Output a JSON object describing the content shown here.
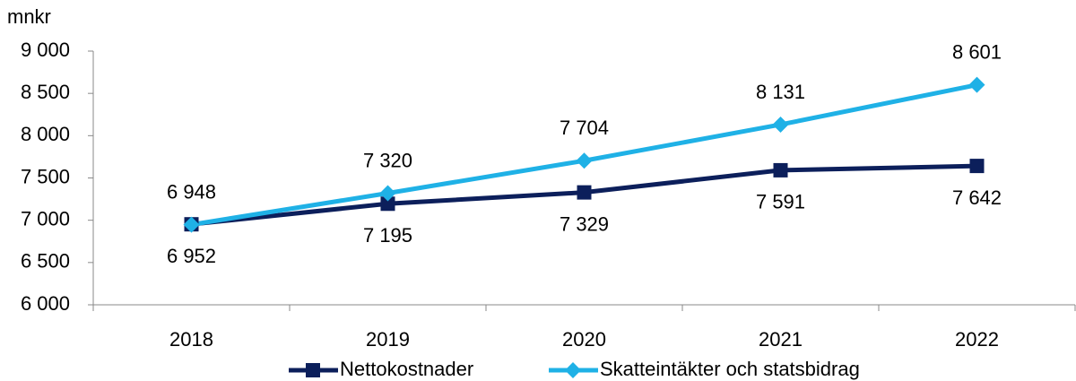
{
  "chart_data": {
    "type": "line",
    "y_label": "mnkr",
    "categories": [
      "2018",
      "2019",
      "2020",
      "2021",
      "2022"
    ],
    "series": [
      {
        "name": "Nettokostnader",
        "color": "#0c1f5b",
        "marker": "square",
        "values": [
          6952,
          7195,
          7329,
          7591,
          7642
        ],
        "value_labels": [
          "6 952",
          "7 195",
          "7 329",
          "7 591",
          "7 642"
        ]
      },
      {
        "name": "Skatteintäkter och statsbidrag",
        "color": "#1fb1e6",
        "marker": "diamond",
        "values": [
          6948,
          7320,
          7704,
          8131,
          8601
        ],
        "value_labels": [
          "6 948",
          "7 320",
          "7 704",
          "8 131",
          "8 601"
        ]
      }
    ],
    "ylim": [
      6000,
      9000
    ],
    "yticks": [
      {
        "value": 6000,
        "label": "6 000"
      },
      {
        "value": 6500,
        "label": "6 500"
      },
      {
        "value": 7000,
        "label": "7 000"
      },
      {
        "value": 7500,
        "label": "7 500"
      },
      {
        "value": 8000,
        "label": "8 000"
      },
      {
        "value": 8500,
        "label": "8 500"
      },
      {
        "value": 9000,
        "label": "9 000"
      }
    ],
    "grid": false,
    "legend": "bottom"
  }
}
